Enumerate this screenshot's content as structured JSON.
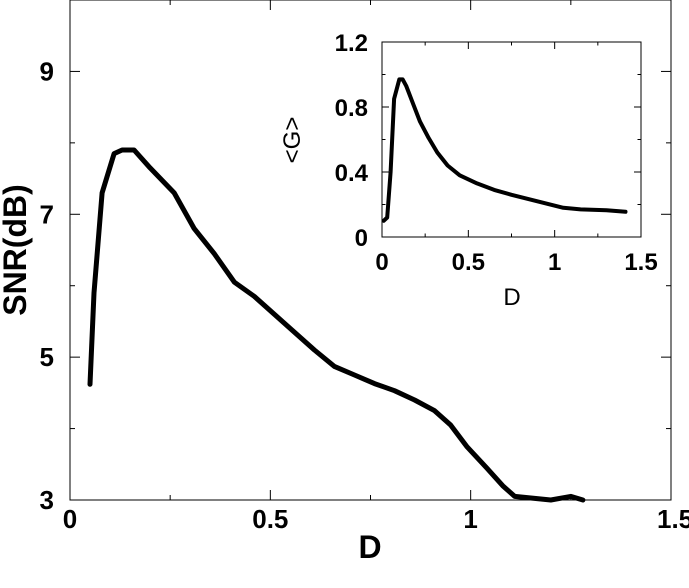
{
  "chart_data": [
    {
      "type": "line",
      "xlabel": "D",
      "ylabel": "SNR(dB)",
      "xlim": [
        0,
        1.5
      ],
      "ylim": [
        3,
        10
      ],
      "xticks": [
        "0",
        "0.5",
        "1",
        "1.5"
      ],
      "xtick_values": [
        0,
        0.5,
        1,
        1.5
      ],
      "yticks": [
        "3",
        "5",
        "7",
        "9"
      ],
      "ytick_values": [
        3,
        5,
        7,
        9
      ],
      "grid": false,
      "series": [
        {
          "color": "#000000",
          "x": [
            0.05,
            0.06,
            0.08,
            0.11,
            0.13,
            0.16,
            0.2,
            0.26,
            0.31,
            0.36,
            0.41,
            0.46,
            0.51,
            0.55,
            0.61,
            0.66,
            0.71,
            0.76,
            0.81,
            0.86,
            0.91,
            0.95,
            0.99,
            1.04,
            1.08,
            1.11,
            1.2,
            1.25,
            1.28
          ],
          "y": [
            4.62,
            5.9,
            7.3,
            7.85,
            7.9,
            7.9,
            7.65,
            7.3,
            6.8,
            6.45,
            6.05,
            5.85,
            5.6,
            5.4,
            5.1,
            4.87,
            4.75,
            4.63,
            4.53,
            4.4,
            4.25,
            4.05,
            3.75,
            3.45,
            3.2,
            3.05,
            3.0,
            3.05,
            3.0
          ]
        }
      ]
    },
    {
      "type": "line",
      "xlabel": "D",
      "ylabel": "<G>",
      "xlim": [
        0,
        1.5
      ],
      "ylim": [
        0,
        1.2
      ],
      "xticks": [
        "0",
        "0.5",
        "1",
        "1.5"
      ],
      "xtick_values": [
        0,
        0.5,
        1,
        1.5
      ],
      "yticks": [
        "0",
        "0.4",
        "0.8",
        "1.2"
      ],
      "ytick_values": [
        0,
        0.4,
        0.8,
        1.2
      ],
      "grid": false,
      "series": [
        {
          "color": "#000000",
          "x": [
            0.01,
            0.03,
            0.05,
            0.07,
            0.1,
            0.12,
            0.14,
            0.18,
            0.22,
            0.27,
            0.32,
            0.38,
            0.45,
            0.55,
            0.65,
            0.75,
            0.9,
            1.05,
            1.15,
            1.3,
            1.41
          ],
          "y": [
            0.1,
            0.12,
            0.4,
            0.85,
            0.97,
            0.97,
            0.93,
            0.82,
            0.71,
            0.61,
            0.52,
            0.44,
            0.38,
            0.33,
            0.29,
            0.26,
            0.22,
            0.18,
            0.17,
            0.165,
            0.155
          ]
        }
      ]
    }
  ]
}
